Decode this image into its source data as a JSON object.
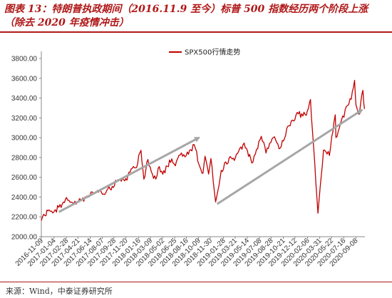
{
  "header": {
    "title_line1": "图表 13：特朗普执政期间（2016.11.9 至今）标普 500 指数经历两个阶段上涨",
    "title_line2": "（除去 2020 年疫情冲击）"
  },
  "footer": {
    "source": "来源：Wind，中泰证券研究所"
  },
  "chart_data": {
    "type": "line",
    "legend_position": "top-center",
    "grid": false,
    "ylim": [
      2000,
      3800
    ],
    "yticks": [
      "2000.00",
      "2200.00",
      "2400.00",
      "2600.00",
      "2800.00",
      "3000.00",
      "3200.00",
      "3400.00",
      "3600.00",
      "3800.00"
    ],
    "xticks": [
      "2016-11-09",
      "2017-01-04",
      "2017-02-28",
      "2017-04-21",
      "2017-06-14",
      "2017-08-07",
      "2017-09-28",
      "2017-11-20",
      "2018-01-16",
      "2018-03-09",
      "2018-05-02",
      "2018-06-25",
      "2018-08-16",
      "2018-10-09",
      "2018-11-30",
      "2019-01-28",
      "2019-03-21",
      "2019-05-14",
      "2019-07-08",
      "2019-08-28",
      "2019-10-21",
      "2019-12-12",
      "2020-02-06",
      "2020-03-31",
      "2020-05-22",
      "2020-07-16",
      "2020-09-08"
    ],
    "line_color": "#c00000",
    "trend_color": "#a6a6a6",
    "series": [
      {
        "name": "SPX500行情走势",
        "points": [
          [
            "2016-11-09",
            2163
          ],
          [
            "2016-11-25",
            2213
          ],
          [
            "2016-12-13",
            2271
          ],
          [
            "2016-12-30",
            2239
          ],
          [
            "2017-01-26",
            2297
          ],
          [
            "2017-02-15",
            2350
          ],
          [
            "2017-03-01",
            2396
          ],
          [
            "2017-03-22",
            2349
          ],
          [
            "2017-04-13",
            2329
          ],
          [
            "2017-04-28",
            2384
          ],
          [
            "2017-05-17",
            2357
          ],
          [
            "2017-06-19",
            2453
          ],
          [
            "2017-07-27",
            2475
          ],
          [
            "2017-08-18",
            2426
          ],
          [
            "2017-09-20",
            2508
          ],
          [
            "2017-10-20",
            2575
          ],
          [
            "2017-11-15",
            2564
          ],
          [
            "2017-12-18",
            2690
          ],
          [
            "2018-01-02",
            2695
          ],
          [
            "2018-01-26",
            2873
          ],
          [
            "2018-02-08",
            2581
          ],
          [
            "2018-02-26",
            2780
          ],
          [
            "2018-03-23",
            2588
          ],
          [
            "2018-04-02",
            2582
          ],
          [
            "2018-04-18",
            2708
          ],
          [
            "2018-05-03",
            2630
          ],
          [
            "2018-06-12",
            2786
          ],
          [
            "2018-06-28",
            2716
          ],
          [
            "2018-07-25",
            2846
          ],
          [
            "2018-08-15",
            2818
          ],
          [
            "2018-09-20",
            2930
          ],
          [
            "2018-10-11",
            2728
          ],
          [
            "2018-10-29",
            2641
          ],
          [
            "2018-11-07",
            2813
          ],
          [
            "2018-11-23",
            2633
          ],
          [
            "2018-12-03",
            2790
          ],
          [
            "2018-12-24",
            2351
          ],
          [
            "2019-01-18",
            2670
          ],
          [
            "2019-02-22",
            2792
          ],
          [
            "2019-03-22",
            2800
          ],
          [
            "2019-04-30",
            2946
          ],
          [
            "2019-06-03",
            2744
          ],
          [
            "2019-07-15",
            3014
          ],
          [
            "2019-08-05",
            2845
          ],
          [
            "2019-09-12",
            3009
          ],
          [
            "2019-10-02",
            2888
          ],
          [
            "2019-11-15",
            3120
          ],
          [
            "2019-12-27",
            3240
          ],
          [
            "2020-01-31",
            3225
          ],
          [
            "2020-02-19",
            3386
          ],
          [
            "2020-03-09",
            2746
          ],
          [
            "2020-03-23",
            2237
          ],
          [
            "2020-04-17",
            2875
          ],
          [
            "2020-05-13",
            2820
          ],
          [
            "2020-06-08",
            3232
          ],
          [
            "2020-06-11",
            3002
          ],
          [
            "2020-07-06",
            3180
          ],
          [
            "2020-08-18",
            3389
          ],
          [
            "2020-09-02",
            3580
          ],
          [
            "2020-09-08",
            3332
          ],
          [
            "2020-09-23",
            3237
          ],
          [
            "2020-10-01",
            3381
          ],
          [
            "2020-10-09",
            3478
          ],
          [
            "2020-10-16",
            3290
          ]
        ]
      }
    ],
    "annotations": [
      {
        "type": "arrow",
        "from": [
          "2017-01-26",
          2250
        ],
        "to": [
          "2018-10-11",
          3000
        ]
      },
      {
        "type": "arrow",
        "from": [
          "2018-12-31",
          2330
        ],
        "to": [
          "2020-10-05",
          3280
        ]
      }
    ]
  }
}
